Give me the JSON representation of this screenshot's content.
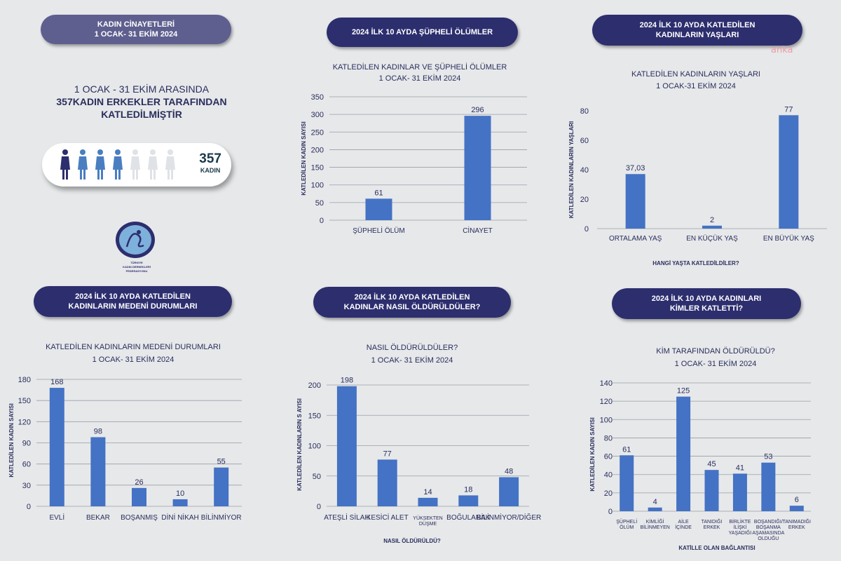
{
  "watermark": "anka",
  "header": {
    "line1": "KADIN CİNAYETLERİ",
    "line2": "1 OCAK- 31 EKİM 2024"
  },
  "intro": {
    "line1": "1 OCAK - 31 EKİM ARASINDA",
    "line2": "357KADIN ERKEKLER TARAFINDAN",
    "line3": "KATLEDİLMİŞTİR"
  },
  "people_card": {
    "count": "357",
    "label": "KADIN",
    "dark_figures": 1,
    "blue_figures": 3,
    "light_figures": 3,
    "colors": {
      "dark": "#2d2e6e",
      "blue": "#4a7ec0",
      "light": "#dfe2e6"
    }
  },
  "logo": {
    "line1": "TÜRKİYE",
    "line2": "KADIN DERNEKLERİ",
    "line3": "FEDERASYONU"
  },
  "section_titles": {
    "suspicious": [
      "2024 İLK 10 AYDA ŞÜPHELİ ÖLÜMLER"
    ],
    "ages": [
      "2024 İLK 10 AYDA KATLEDİLEN",
      "KADINLARIN YAŞLARI"
    ],
    "marital": [
      "2024 İLK 10 AYDA KATLEDİLEN",
      "KADINLARIN MEDENİ DURUMLARI"
    ],
    "method": [
      "2024 İLK 10 AYDA KATLEDİLEN",
      "KADINLAR NASIL ÖLDÜRÜLDÜLER?"
    ],
    "who": [
      "2024 İLK 10 AYDA KADINLARI",
      "KİMLER KATLETTİ?"
    ]
  },
  "chart_data": [
    {
      "id": "suspicious",
      "type": "bar",
      "title": [
        "KATLEDİLEN KADINLAR VE ŞÜPHELİ ÖLÜMLER",
        "1 OCAK- 31 EKİM 2024"
      ],
      "ylabel": "KATLEDİLEN KADIN SAYISI",
      "xlabel": "",
      "categories": [
        [
          "ŞÜPHELİ ÖLÜM"
        ],
        [
          "CİNAYET"
        ]
      ],
      "values": [
        61,
        296
      ],
      "value_labels": [
        "61",
        "296"
      ],
      "ylim": [
        0,
        350
      ],
      "yticks": [
        0,
        50,
        100,
        150,
        200,
        250,
        300,
        350
      ],
      "grid": true
    },
    {
      "id": "ages",
      "type": "bar",
      "title": [
        "KATLEDİLEN KADINLARIN YAŞLARI",
        "1 OCAK-31 EKİM 2024"
      ],
      "ylabel": "KATLEDİLEN KADINLARIN YAŞLARI",
      "xlabel": "HANGİ YAŞTA KATLEDİLDİLER?",
      "categories": [
        [
          "ORTALAMA YAŞ"
        ],
        [
          "EN KÜÇÜK YAŞ"
        ],
        [
          "EN BÜYÜK YAŞ"
        ]
      ],
      "values": [
        37.03,
        2,
        77
      ],
      "value_labels": [
        "37,03",
        "2",
        "77"
      ],
      "ylim": [
        0,
        80
      ],
      "yticks": [
        0,
        20,
        40,
        60,
        80
      ],
      "grid": false
    },
    {
      "id": "marital",
      "type": "bar",
      "title": [
        "KATLEDİLEN KADINLARIN MEDENİ DURUMLARI",
        "1 OCAK- 31 EKİM 2024"
      ],
      "ylabel": "KATLEDİLEN KADIN SAYISI",
      "xlabel": "",
      "categories": [
        [
          "EVLİ"
        ],
        [
          "BEKAR"
        ],
        [
          "BOŞANMIŞ"
        ],
        [
          "DİNİ NİKAH"
        ],
        [
          "BİLİNMİYOR"
        ]
      ],
      "values": [
        168,
        98,
        26,
        10,
        55
      ],
      "value_labels": [
        "168",
        "98",
        "26",
        "10",
        "55"
      ],
      "ylim": [
        0,
        180
      ],
      "yticks": [
        0,
        30,
        60,
        90,
        120,
        150,
        180
      ],
      "grid": true
    },
    {
      "id": "method",
      "type": "bar",
      "title": [
        "NASIL ÖLDÜRÜLDÜLER?",
        "1 OCAK- 31 EKİM 2024"
      ],
      "ylabel": "KATLEDİLEN KADINLARIN S AYISI",
      "xlabel": "NASIL ÖLDÜRÜLDÜ?",
      "categories": [
        [
          "ATEŞLİ SİLAH"
        ],
        [
          "KESİCİ ALET"
        ],
        [
          "YÜKSEKTEN",
          "DÜŞME"
        ],
        [
          "BOĞULARAK"
        ],
        [
          "BİLİNMİYOR/DİĞER"
        ]
      ],
      "values": [
        198,
        77,
        14,
        18,
        48
      ],
      "value_labels": [
        "198",
        "77",
        "14",
        "18",
        "48"
      ],
      "ylim": [
        0,
        200
      ],
      "yticks": [
        0,
        50,
        100,
        150,
        200
      ],
      "grid": true
    },
    {
      "id": "who",
      "type": "bar",
      "title": [
        "KİM TARAFINDAN ÖLDÜRÜLDÜ?",
        "1 OCAK- 31 EKİM 2024"
      ],
      "ylabel": "KATLEDİLEN KADIN SAYISI",
      "xlabel": "KATİLLE OLAN BAĞLANTISI",
      "categories": [
        [
          "ŞÜPHELİ",
          "ÖLÜM"
        ],
        [
          "KİMLİĞİ",
          "BİLİNMEYEN"
        ],
        [
          "AİLE",
          "İÇİNDE"
        ],
        [
          "TANIDIĞI",
          "ERKEK"
        ],
        [
          "BİRLİKTE",
          "İLİŞKİ",
          "YAŞADIĞI"
        ],
        [
          "BOŞANDIĞI/",
          "BOŞANMA",
          "AŞAMASINDA",
          "OLDUĞU"
        ],
        [
          "TANIMADIĞI",
          "ERKEK"
        ]
      ],
      "values": [
        61,
        4,
        125,
        45,
        41,
        53,
        6
      ],
      "value_labels": [
        "61",
        "4",
        "125",
        "45",
        "41",
        "53",
        "6"
      ],
      "ylim": [
        0,
        140
      ],
      "yticks": [
        0,
        20,
        40,
        60,
        80,
        100,
        120,
        140
      ],
      "grid": true
    }
  ],
  "colors": {
    "bar": "#4472c4",
    "pill": "#2d2e6e",
    "pill_light": "#5e5f8e",
    "text": "#2b2e5c",
    "grid": "#9aa0a6"
  }
}
